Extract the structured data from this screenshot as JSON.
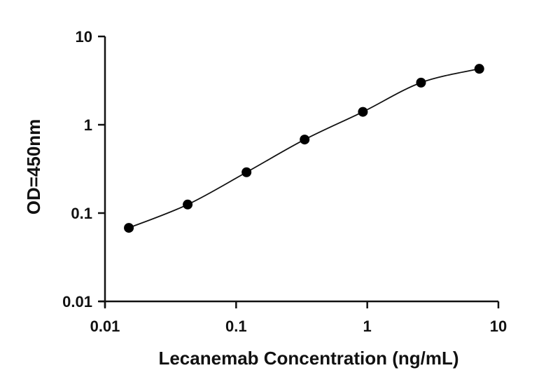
{
  "chart_data": {
    "type": "scatter",
    "xlabel": "Lecanemab Concentration (ng/mL)",
    "ylabel": "OD=450nm",
    "x_scale": "log",
    "y_scale": "log",
    "xlim": [
      0.01,
      10
    ],
    "ylim": [
      0.01,
      10
    ],
    "x_ticks": [
      "0.01",
      "0.1",
      "1",
      "10"
    ],
    "y_ticks": [
      "0.01",
      "0.1",
      "1",
      "10"
    ],
    "grid": false,
    "fit_curve": true,
    "points": [
      {
        "x": 0.0152,
        "y": 0.068
      },
      {
        "x": 0.0427,
        "y": 0.125
      },
      {
        "x": 0.12,
        "y": 0.29
      },
      {
        "x": 0.333,
        "y": 0.68
      },
      {
        "x": 0.926,
        "y": 1.4
      },
      {
        "x": 2.57,
        "y": 3.0
      },
      {
        "x": 7.15,
        "y": 4.3
      }
    ]
  }
}
